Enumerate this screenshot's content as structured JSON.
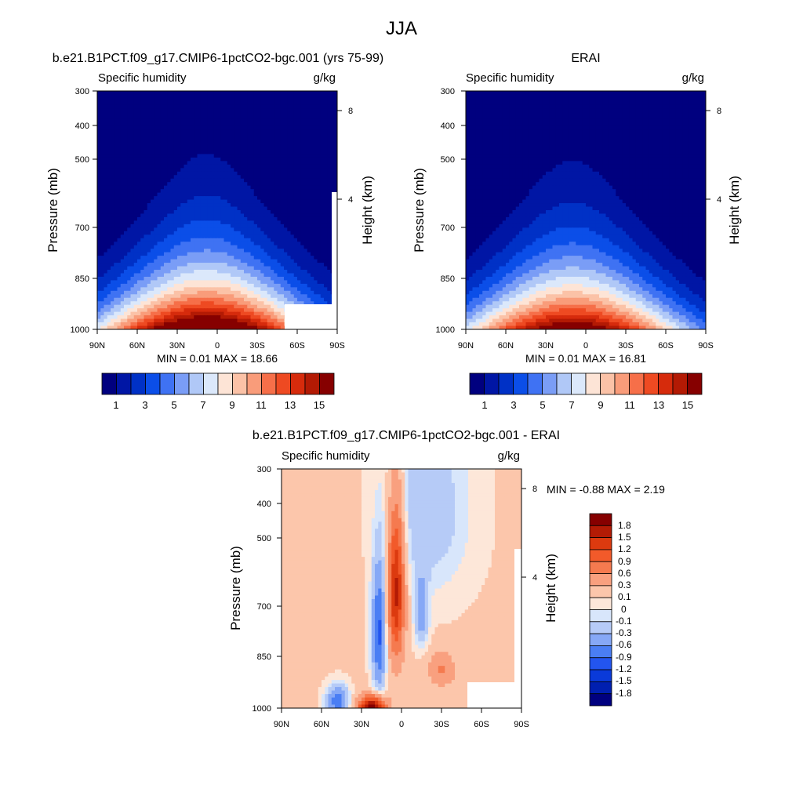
{
  "figure_title": "JJA",
  "palettes": {
    "absolute": [
      "#00007f",
      "#0016a5",
      "#0031c6",
      "#0b4ee8",
      "#3f72f3",
      "#7a9df6",
      "#b0c8f7",
      "#dbe8fb",
      "#fde4d6",
      "#fbc2a7",
      "#f99c7a",
      "#f66f49",
      "#ee4a22",
      "#d62b0c",
      "#b31a04",
      "#860000"
    ],
    "difference": [
      "#00007f",
      "#001fb0",
      "#0a3ad9",
      "#2355ef",
      "#4a7ef4",
      "#86a8f6",
      "#b6cbf7",
      "#d8e6fb",
      "#fde7d9",
      "#fcc6ab",
      "#f9a07f",
      "#f57a4f",
      "#f25a2a",
      "#dc3a0f",
      "#b31b05",
      "#860000"
    ]
  },
  "panels": [
    {
      "title": "b.e21.B1PCT.f09_g17.CMIP6-1pctCO2-bgc.001 (yrs 75-99)",
      "left_label": "Specific humidity",
      "right_label": "g/kg",
      "minmax_text": "MIN =   0.01  MAX =  18.66",
      "ylabel": "Pressure (mb)",
      "y2label": "Height (km)",
      "colorbar_labels": [
        "1",
        "3",
        "5",
        "7",
        "9",
        "11",
        "13",
        "15"
      ]
    },
    {
      "title": "ERAI",
      "left_label": "Specific humidity",
      "right_label": "g/kg",
      "minmax_text": "MIN =   0.01  MAX =  16.81",
      "ylabel": "Pressure (mb)",
      "y2label": "Height (km)",
      "colorbar_labels": [
        "1",
        "3",
        "5",
        "7",
        "9",
        "11",
        "13",
        "15"
      ]
    },
    {
      "title": "b.e21.B1PCT.f09_g17.CMIP6-1pctCO2-bgc.001 - ERAI",
      "left_label": "Specific humidity",
      "right_label": "g/kg",
      "minmax_text": "MIN =  -0.88  MAX =   2.19",
      "ylabel": "Pressure (mb)",
      "y2label": "Height (km)",
      "colorbar_labels": [
        "1.8",
        "1.5",
        "1.2",
        "0.9",
        "0.6",
        "0.3",
        "0.1",
        "0",
        "-0.1",
        "-0.3",
        "-0.6",
        "-0.9",
        "-1.2",
        "-1.5",
        "-1.8"
      ]
    }
  ],
  "chart_data": [
    {
      "type": "heatmap",
      "title": "b.e21.B1PCT.f09_g17.CMIP6-1pctCO2-bgc.001 (yrs 75-99)",
      "variable": "Specific humidity",
      "units": "g/kg",
      "xlabel": "",
      "ylabel": "Pressure (mb)",
      "y2label": "Height (km)",
      "x_ticks": [
        "90N",
        "60N",
        "30N",
        "0",
        "30S",
        "60S",
        "90S"
      ],
      "y_ticks": [
        300,
        400,
        500,
        700,
        850,
        1000
      ],
      "y2_ticks": [
        8,
        4
      ],
      "y_scale": "log",
      "ylim": [
        1000,
        300
      ],
      "xlim": [
        90,
        -90
      ],
      "min": 0.01,
      "max": 18.66,
      "contour_levels": [
        1,
        2,
        3,
        4,
        5,
        6,
        7,
        8,
        9,
        10,
        11,
        12,
        13,
        14,
        15
      ],
      "peak": {
        "lat": 8,
        "pressure": 1000,
        "value": 18.66
      }
    },
    {
      "type": "heatmap",
      "title": "ERAI",
      "variable": "Specific humidity",
      "units": "g/kg",
      "xlabel": "",
      "ylabel": "Pressure (mb)",
      "y2label": "Height (km)",
      "x_ticks": [
        "90N",
        "60N",
        "30N",
        "0",
        "30S",
        "60S",
        "90S"
      ],
      "y_ticks": [
        300,
        400,
        500,
        700,
        850,
        1000
      ],
      "y2_ticks": [
        8,
        4
      ],
      "y_scale": "log",
      "ylim": [
        1000,
        300
      ],
      "xlim": [
        90,
        -90
      ],
      "min": 0.01,
      "max": 16.81,
      "contour_levels": [
        1,
        2,
        3,
        4,
        5,
        6,
        7,
        8,
        9,
        10,
        11,
        12,
        13,
        14,
        15
      ],
      "peak": {
        "lat": 10,
        "pressure": 1000,
        "value": 16.81
      }
    },
    {
      "type": "heatmap",
      "title": "b.e21.B1PCT.f09_g17.CMIP6-1pctCO2-bgc.001 - ERAI",
      "variable": "Specific humidity",
      "units": "g/kg",
      "xlabel": "",
      "ylabel": "Pressure (mb)",
      "y2label": "Height (km)",
      "x_ticks": [
        "90N",
        "60N",
        "30N",
        "0",
        "30S",
        "60S",
        "90S"
      ],
      "y_ticks": [
        300,
        400,
        500,
        700,
        850,
        1000
      ],
      "y2_ticks": [
        8,
        4
      ],
      "y_scale": "log",
      "ylim": [
        1000,
        300
      ],
      "xlim": [
        90,
        -90
      ],
      "min": -0.88,
      "max": 2.19,
      "contour_levels": [
        -1.8,
        -1.5,
        -1.2,
        -0.9,
        -0.6,
        -0.3,
        -0.1,
        0,
        0.1,
        0.3,
        0.6,
        0.9,
        1.2,
        1.5,
        1.8
      ]
    }
  ]
}
